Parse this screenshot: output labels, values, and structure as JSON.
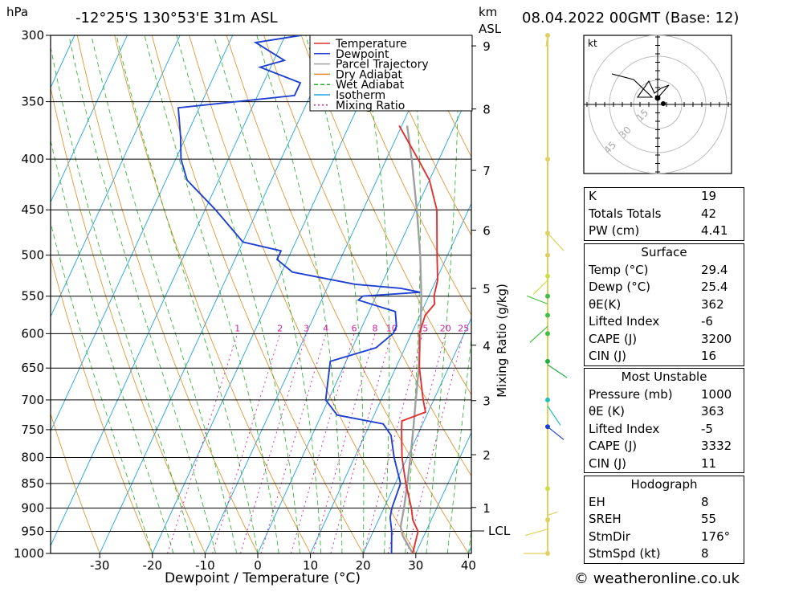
{
  "header": {
    "unit_left": "hPa",
    "location": "-12°25'S 130°53'E 31m ASL",
    "unit_right_1": "km",
    "unit_right_2": "ASL",
    "run": "08.04.2022 00GMT (Base: 12)"
  },
  "colors": {
    "temperature": "#e03030",
    "dewpoint": "#2040d0",
    "parcel": "#a0a0a0",
    "dry_adiabat": "#e08a20",
    "wet_adiabat": "#20b020",
    "isotherm": "#20a0e0",
    "mixing_ratio": "#d020a0"
  },
  "legend": [
    "Temperature",
    "Dewpoint",
    "Parcel Trajectory",
    "Dry Adiabat",
    "Wet Adiabat",
    "Isotherm",
    "Mixing Ratio"
  ],
  "chart_data": {
    "type": "line",
    "xlabel": "Dewpoint / Temperature (°C)",
    "ylabel": "Mixing Ratio (g/kg)",
    "x_ticks": [
      -30,
      -20,
      -10,
      0,
      10,
      20,
      30,
      40
    ],
    "pressure_levels": [
      300,
      350,
      400,
      450,
      500,
      550,
      600,
      650,
      700,
      750,
      800,
      850,
      900,
      950,
      1000
    ],
    "km_labels": [
      "1",
      "2",
      "3",
      "4",
      "5",
      "6",
      "7",
      "8",
      "9"
    ],
    "lcl_label": "LCL",
    "mixing_ratio_labels": [
      "1",
      "2",
      "3",
      "4",
      "6",
      "8",
      "10",
      "15",
      "20",
      "25"
    ],
    "series": [
      {
        "name": "Temperature",
        "points": [
          [
            1000,
            29.4
          ],
          [
            950,
            28.5
          ],
          [
            925,
            26.5
          ],
          [
            900,
            25.2
          ],
          [
            850,
            22.0
          ],
          [
            800,
            19.0
          ],
          [
            750,
            16.5
          ],
          [
            735,
            15.8
          ],
          [
            720,
            19.5
          ],
          [
            700,
            18.0
          ],
          [
            650,
            14.5
          ],
          [
            600,
            11.5
          ],
          [
            575,
            11.0
          ],
          [
            560,
            11.8
          ],
          [
            550,
            11.0
          ],
          [
            530,
            10.3
          ],
          [
            500,
            8.0
          ],
          [
            450,
            4.0
          ],
          [
            420,
            0.0
          ],
          [
            400,
            -4.0
          ],
          [
            370,
            -10.5
          ]
        ]
      },
      {
        "name": "Dewpoint",
        "points": [
          [
            1000,
            25.4
          ],
          [
            950,
            23.5
          ],
          [
            920,
            22.0
          ],
          [
            900,
            21.5
          ],
          [
            850,
            21.0
          ],
          [
            800,
            17.5
          ],
          [
            760,
            15.0
          ],
          [
            740,
            12.5
          ],
          [
            725,
            3.0
          ],
          [
            700,
            -0.5
          ],
          [
            640,
            -3.0
          ],
          [
            620,
            4.5
          ],
          [
            600,
            6.5
          ],
          [
            590,
            6.5
          ],
          [
            570,
            5.0
          ],
          [
            555,
            -3.0
          ],
          [
            550,
            -2.5
          ],
          [
            545,
            8.0
          ],
          [
            540,
            4.0
          ],
          [
            535,
            -5.0
          ],
          [
            520,
            -18.0
          ],
          [
            505,
            -22.0
          ],
          [
            495,
            -22.0
          ],
          [
            485,
            -30.0
          ],
          [
            450,
            -38.0
          ],
          [
            420,
            -46.0
          ],
          [
            400,
            -49.0
          ],
          [
            380,
            -51.0
          ],
          [
            355,
            -54.0
          ],
          [
            345,
            -33.0
          ],
          [
            335,
            -33.0
          ],
          [
            323,
            -42.0
          ],
          [
            318,
            -38.0
          ],
          [
            305,
            -45.0
          ],
          [
            300,
            -37.0
          ]
        ]
      },
      {
        "name": "Parcel Trajectory",
        "points": [
          [
            1000,
            29.4
          ],
          [
            960,
            26.0
          ],
          [
            940,
            24.8
          ],
          [
            900,
            23.8
          ],
          [
            850,
            22.3
          ],
          [
            800,
            20.6
          ],
          [
            750,
            18.7
          ],
          [
            700,
            16.6
          ],
          [
            650,
            14.4
          ],
          [
            600,
            11.7
          ],
          [
            550,
            8.6
          ],
          [
            500,
            4.8
          ],
          [
            450,
            0.2
          ],
          [
            400,
            -5.2
          ],
          [
            370,
            -9.0
          ]
        ]
      }
    ]
  },
  "hodograph": {
    "unit": "kt",
    "ring_labels": [
      "15",
      "30",
      "45"
    ]
  },
  "indices": {
    "top": [
      {
        "label": "K",
        "value": "19"
      },
      {
        "label": "Totals Totals",
        "value": "42"
      },
      {
        "label": "PW (cm)",
        "value": "4.41"
      }
    ],
    "surface_title": "Surface",
    "surface": [
      {
        "label": "Temp (°C)",
        "value": "29.4"
      },
      {
        "label": "Dewp (°C)",
        "value": "25.4"
      },
      {
        "label": "θE(K)",
        "value": "362"
      },
      {
        "label": "Lifted Index",
        "value": "-6"
      },
      {
        "label": "CAPE (J)",
        "value": "3200"
      },
      {
        "label": "CIN (J)",
        "value": "16"
      }
    ],
    "mu_title": "Most Unstable",
    "mu": [
      {
        "label": "Pressure (mb)",
        "value": "1000"
      },
      {
        "label": "θE (K)",
        "value": "363"
      },
      {
        "label": "Lifted Index",
        "value": "-5"
      },
      {
        "label": "CAPE (J)",
        "value": "3332"
      },
      {
        "label": "CIN (J)",
        "value": "11"
      }
    ],
    "hodo_title": "Hodograph",
    "hodo": [
      {
        "label": "EH",
        "value": "8"
      },
      {
        "label": "SREH",
        "value": "55"
      },
      {
        "label": "StmDir",
        "value": "176°"
      },
      {
        "label": "StmSpd (kt)",
        "value": "8"
      }
    ]
  },
  "credit": "© weatheronline.co.uk"
}
